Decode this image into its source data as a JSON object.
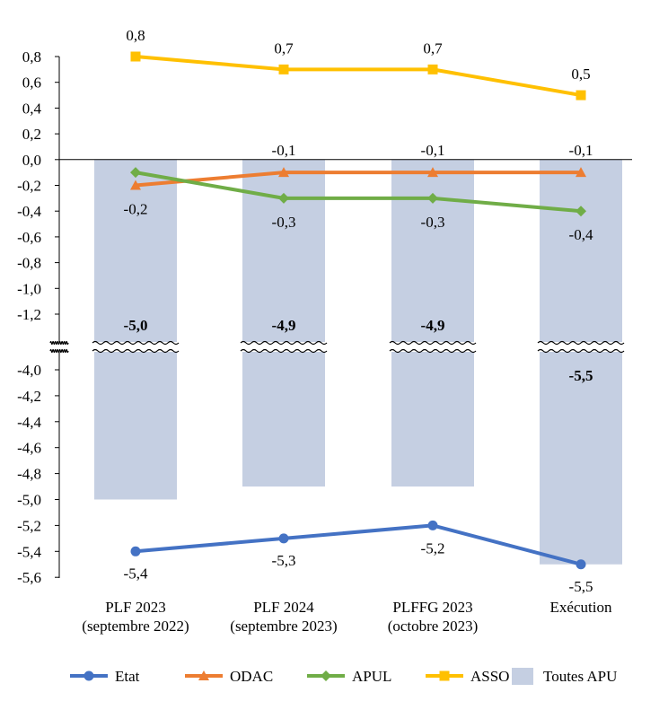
{
  "chart_data": {
    "type": "line",
    "categories": [
      [
        "PLF 2023",
        "(septembre 2022)"
      ],
      [
        "PLF 2024",
        "(septembre 2023)"
      ],
      [
        "PLFFG 2023",
        "(octobre 2023)"
      ],
      [
        "Exécution",
        ""
      ]
    ],
    "y_axis": {
      "break": true,
      "upper_ylim": [
        -1.2,
        0.8
      ],
      "lower_ylim": [
        -5.6,
        -4.0
      ],
      "upper_ticks": [
        "0,8",
        "0,6",
        "0,4",
        "0,2",
        "0,0",
        "-0,2",
        "-0,4",
        "-0,6",
        "-0,8",
        "-1,0",
        "-1,2"
      ],
      "lower_ticks": [
        "-4,0",
        "-4,2",
        "-4,4",
        "-4,6",
        "-4,8",
        "-5,0",
        "-5,2",
        "-5,4",
        "-5,6"
      ]
    },
    "bars": {
      "name": "Toutes APU",
      "color": "#c5cfe2",
      "values": [
        -5.0,
        -4.9,
        -4.9,
        -5.5
      ],
      "labels": [
        "-5,0",
        "-4,9",
        "-4,9",
        "-5,5"
      ]
    },
    "series": [
      {
        "name": "Etat",
        "color": "#4472c4",
        "marker": "circle",
        "values": [
          -5.4,
          -5.3,
          -5.2,
          -5.5
        ],
        "labels": [
          "-5,4",
          "-5,3",
          "-5,2",
          "-5,5"
        ]
      },
      {
        "name": "ODAC",
        "color": "#ed7d31",
        "marker": "triangle",
        "values": [
          -0.2,
          -0.1,
          -0.1,
          -0.1
        ],
        "labels": [
          "-0,2",
          "-0,1",
          "-0,1",
          "-0,1"
        ]
      },
      {
        "name": "APUL",
        "color": "#70ad47",
        "marker": "diamond",
        "values": [
          -0.1,
          -0.3,
          -0.3,
          -0.4
        ],
        "labels": [
          "",
          "-0,3",
          "-0,3",
          "-0,4"
        ]
      },
      {
        "name": "ASSO",
        "color": "#ffc000",
        "marker": "square",
        "values": [
          0.8,
          0.7,
          0.7,
          0.5
        ],
        "labels": [
          "0,8",
          "0,7",
          "0,7",
          "0,5"
        ]
      }
    ],
    "legend": {
      "position": "bottom",
      "entries": [
        "Etat",
        "ODAC",
        "APUL",
        "ASSO",
        "Toutes APU"
      ]
    }
  }
}
